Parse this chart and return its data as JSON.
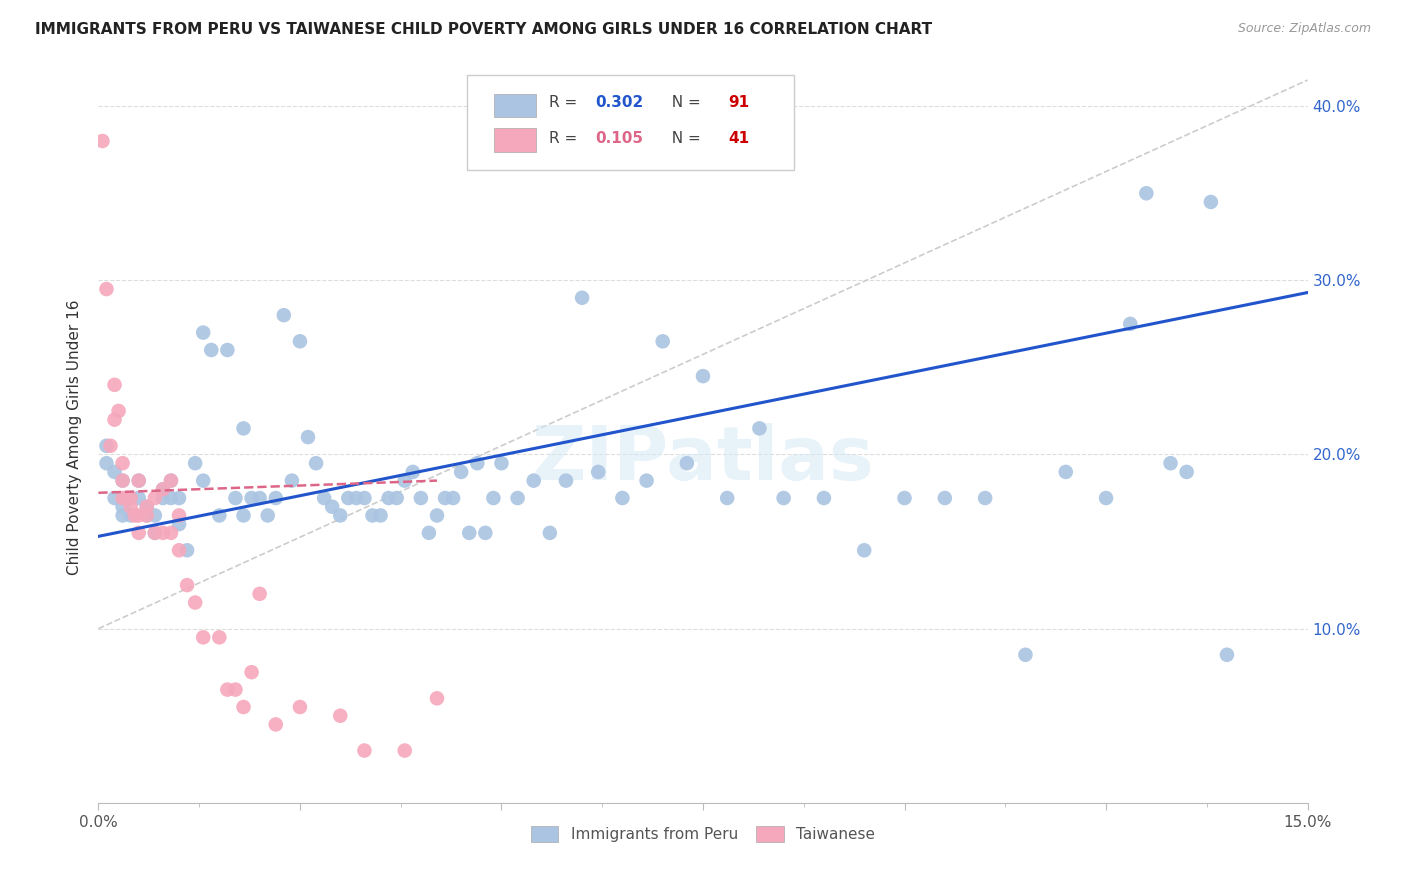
{
  "title": "IMMIGRANTS FROM PERU VS TAIWANESE CHILD POVERTY AMONG GIRLS UNDER 16 CORRELATION CHART",
  "source": "Source: ZipAtlas.com",
  "ylabel": "Child Poverty Among Girls Under 16",
  "xlim": [
    0.0,
    0.15
  ],
  "ylim": [
    0.0,
    0.42
  ],
  "yticks": [
    0.0,
    0.1,
    0.2,
    0.3,
    0.4
  ],
  "peru_color": "#aac4e2",
  "taiwan_color": "#f5a8bc",
  "peru_line_color": "#2255cc",
  "taiwan_line_color": "#dd6688",
  "ref_line_color": "#cccccc",
  "watermark": "ZIPatlas",
  "peru_trend_x0": 0.0,
  "peru_trend_y0": 0.153,
  "peru_trend_x1": 0.15,
  "peru_trend_y1": 0.293,
  "taiwan_trend_x0": 0.0,
  "taiwan_trend_y0": 0.178,
  "taiwan_trend_x1": 0.042,
  "taiwan_trend_y1": 0.185,
  "ref_line_x0": 0.0,
  "ref_line_y0": 0.1,
  "ref_line_x1": 0.15,
  "ref_line_y1": 0.415,
  "peru_points_x": [
    0.001,
    0.001,
    0.002,
    0.002,
    0.003,
    0.003,
    0.003,
    0.004,
    0.004,
    0.005,
    0.005,
    0.006,
    0.006,
    0.007,
    0.007,
    0.008,
    0.008,
    0.009,
    0.009,
    0.01,
    0.01,
    0.011,
    0.012,
    0.013,
    0.013,
    0.014,
    0.015,
    0.016,
    0.017,
    0.018,
    0.018,
    0.019,
    0.02,
    0.021,
    0.022,
    0.023,
    0.024,
    0.025,
    0.026,
    0.027,
    0.028,
    0.029,
    0.03,
    0.031,
    0.032,
    0.033,
    0.034,
    0.035,
    0.036,
    0.037,
    0.038,
    0.039,
    0.04,
    0.041,
    0.042,
    0.043,
    0.044,
    0.045,
    0.046,
    0.047,
    0.048,
    0.049,
    0.05,
    0.052,
    0.054,
    0.056,
    0.058,
    0.06,
    0.062,
    0.065,
    0.068,
    0.07,
    0.073,
    0.075,
    0.078,
    0.082,
    0.085,
    0.09,
    0.095,
    0.1,
    0.105,
    0.11,
    0.115,
    0.12,
    0.125,
    0.128,
    0.13,
    0.133,
    0.135,
    0.138,
    0.14
  ],
  "peru_points_y": [
    0.195,
    0.205,
    0.175,
    0.19,
    0.165,
    0.17,
    0.185,
    0.175,
    0.165,
    0.175,
    0.185,
    0.165,
    0.17,
    0.155,
    0.165,
    0.18,
    0.175,
    0.185,
    0.175,
    0.16,
    0.175,
    0.145,
    0.195,
    0.27,
    0.185,
    0.26,
    0.165,
    0.26,
    0.175,
    0.165,
    0.215,
    0.175,
    0.175,
    0.165,
    0.175,
    0.28,
    0.185,
    0.265,
    0.21,
    0.195,
    0.175,
    0.17,
    0.165,
    0.175,
    0.175,
    0.175,
    0.165,
    0.165,
    0.175,
    0.175,
    0.185,
    0.19,
    0.175,
    0.155,
    0.165,
    0.175,
    0.175,
    0.19,
    0.155,
    0.195,
    0.155,
    0.175,
    0.195,
    0.175,
    0.185,
    0.155,
    0.185,
    0.29,
    0.19,
    0.175,
    0.185,
    0.265,
    0.195,
    0.245,
    0.175,
    0.215,
    0.175,
    0.175,
    0.145,
    0.175,
    0.175,
    0.175,
    0.085,
    0.19,
    0.175,
    0.275,
    0.35,
    0.195,
    0.19,
    0.345,
    0.085
  ],
  "taiwan_points_x": [
    0.0005,
    0.001,
    0.0015,
    0.002,
    0.002,
    0.0025,
    0.003,
    0.003,
    0.003,
    0.0035,
    0.004,
    0.004,
    0.0045,
    0.005,
    0.005,
    0.005,
    0.006,
    0.006,
    0.007,
    0.007,
    0.008,
    0.008,
    0.009,
    0.009,
    0.01,
    0.01,
    0.011,
    0.012,
    0.013,
    0.015,
    0.016,
    0.017,
    0.018,
    0.019,
    0.02,
    0.022,
    0.025,
    0.03,
    0.033,
    0.038,
    0.042
  ],
  "taiwan_points_y": [
    0.38,
    0.295,
    0.205,
    0.24,
    0.22,
    0.225,
    0.195,
    0.185,
    0.175,
    0.175,
    0.175,
    0.17,
    0.165,
    0.185,
    0.165,
    0.155,
    0.165,
    0.17,
    0.175,
    0.155,
    0.18,
    0.155,
    0.185,
    0.155,
    0.165,
    0.145,
    0.125,
    0.115,
    0.095,
    0.095,
    0.065,
    0.065,
    0.055,
    0.075,
    0.12,
    0.045,
    0.055,
    0.05,
    0.03,
    0.03,
    0.06
  ]
}
